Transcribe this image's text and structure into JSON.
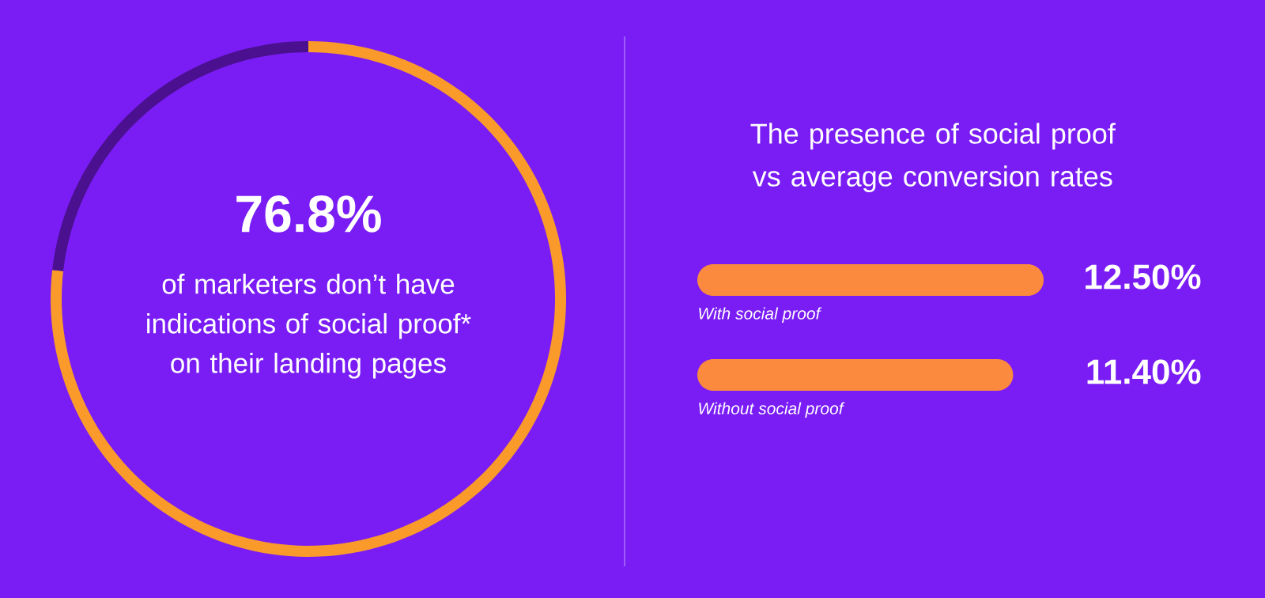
{
  "chart_data": [
    {
      "type": "donut",
      "title": "76.8%",
      "subtitle": "of marketers don’t have indications of social proof* on their landing pages",
      "categories": [
        null,
        null
      ],
      "values": [
        76.8,
        23.2
      ],
      "colors": [
        "#f99a2a",
        "#4b1090"
      ]
    },
    {
      "type": "bar",
      "orientation": "horizontal",
      "title": "The presence of social proof vs average conversion rates",
      "categories": [
        "With social proof",
        "Without social proof"
      ],
      "values": [
        12.5,
        11.4
      ],
      "value_labels": [
        "12.50%",
        "11.40%"
      ],
      "color": "#fb8a3e"
    }
  ]
}
